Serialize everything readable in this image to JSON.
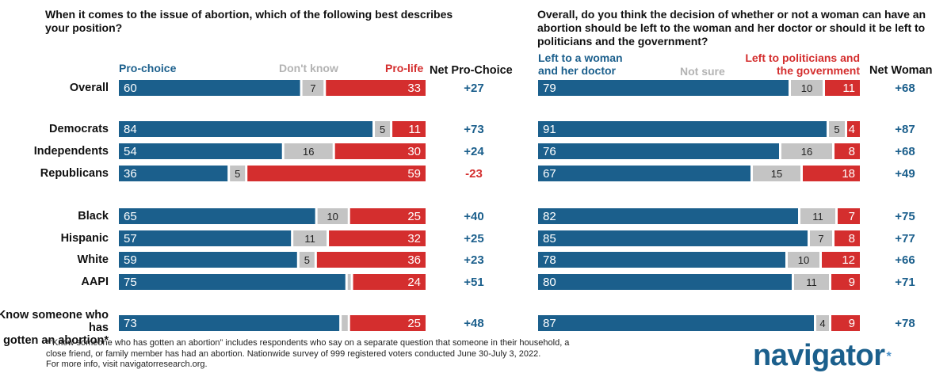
{
  "colors": {
    "pro": "#1b5f8c",
    "neutral": "#c4c4c4",
    "con": "#d42e2e"
  },
  "chart_data": [
    {
      "type": "bar",
      "orientation": "horizontal-stacked",
      "title": "When it comes to the issue of abortion, which of the following best describes your position?",
      "legend": [
        "Pro-choice",
        "Don't know",
        "Pro-life"
      ],
      "net_header": "Net Pro-Choice",
      "categories": [
        "Overall",
        "Democrats",
        "Independents",
        "Republicans",
        "Black",
        "Hispanic",
        "White",
        "AAPI",
        "Know someone who has gotten an abortion*"
      ],
      "series": [
        {
          "name": "Pro-choice",
          "values": [
            60,
            84,
            54,
            36,
            65,
            57,
            59,
            75,
            73
          ]
        },
        {
          "name": "Don't know",
          "values": [
            7,
            5,
            16,
            5,
            10,
            11,
            5,
            1,
            2
          ]
        },
        {
          "name": "Pro-life",
          "values": [
            33,
            11,
            30,
            59,
            25,
            32,
            36,
            24,
            25
          ]
        }
      ],
      "show_label": [
        [
          true,
          true,
          true,
          true,
          true,
          true,
          true,
          true,
          true
        ],
        [
          true,
          true,
          true,
          true,
          true,
          true,
          true,
          false,
          false
        ],
        [
          true,
          true,
          true,
          true,
          true,
          true,
          true,
          true,
          true
        ]
      ],
      "net": [
        "+27",
        "+73",
        "+24",
        "-23",
        "+40",
        "+25",
        "+23",
        "+51",
        "+48"
      ]
    },
    {
      "type": "bar",
      "orientation": "horizontal-stacked",
      "title": "Overall, do you think the decision of whether or not a woman can have an abortion should be left to the woman and her doctor or should it be left to politicians and the government?",
      "legend": [
        "Left to a woman and her doctor",
        "Not sure",
        "Left to politicians and the government"
      ],
      "net_header": "Net Woman",
      "categories": [
        "Overall",
        "Democrats",
        "Independents",
        "Republicans",
        "Black",
        "Hispanic",
        "White",
        "AAPI",
        "Know someone who has gotten an abortion*"
      ],
      "series": [
        {
          "name": "Left to a woman and her doctor",
          "values": [
            79,
            91,
            76,
            67,
            82,
            85,
            78,
            80,
            87
          ]
        },
        {
          "name": "Not sure",
          "values": [
            10,
            5,
            16,
            15,
            11,
            7,
            10,
            11,
            4
          ]
        },
        {
          "name": "Left to politicians and the government",
          "values": [
            11,
            4,
            8,
            18,
            7,
            8,
            12,
            9,
            9
          ]
        }
      ],
      "show_label": [
        [
          true,
          true,
          true,
          true,
          true,
          true,
          true,
          true,
          true
        ],
        [
          true,
          true,
          true,
          true,
          true,
          true,
          true,
          true,
          true
        ],
        [
          true,
          true,
          true,
          true,
          true,
          true,
          true,
          true,
          true
        ]
      ],
      "net": [
        "+68",
        "+87",
        "+68",
        "+49",
        "+75",
        "+77",
        "+66",
        "+71",
        "+78"
      ]
    }
  ],
  "left_header": {
    "question": "When it comes to the issue of abortion, which of the following best describes your position?",
    "pro": "Pro-choice",
    "neutral": "Don't know",
    "con": "Pro-life",
    "net": "Net Pro-Choice"
  },
  "right_header": {
    "question": "Overall, do you think the decision of whether or not a woman can have an abortion should be left to the woman and her doctor or should it be left to politicians and the government?",
    "pro_line1": "Left to a woman",
    "pro_line2": "and her doctor",
    "neutral": "Not sure",
    "con_line1": "Left to politicians and",
    "con_line2": "the government",
    "net": "Net Woman"
  },
  "row_labels": [
    "Overall",
    "Democrats",
    "Independents",
    "Republicans",
    "Black",
    "Hispanic",
    "White",
    "AAPI"
  ],
  "last_row_label": {
    "line1": "Know someone who has",
    "line2": "gotten an abortion*"
  },
  "footnote": {
    "line1": "*“Know someone who has gotten an abortion” includes respondents who say on a separate question that someone in their household, a",
    "line2": "close friend, or family member has had an abortion. Nationwide survey of 999 registered voters conducted June 30-July 3, 2022.",
    "line3": "For more info, visit navigatorresearch.org."
  },
  "logo": {
    "text": "navigator",
    "mark": "*"
  }
}
